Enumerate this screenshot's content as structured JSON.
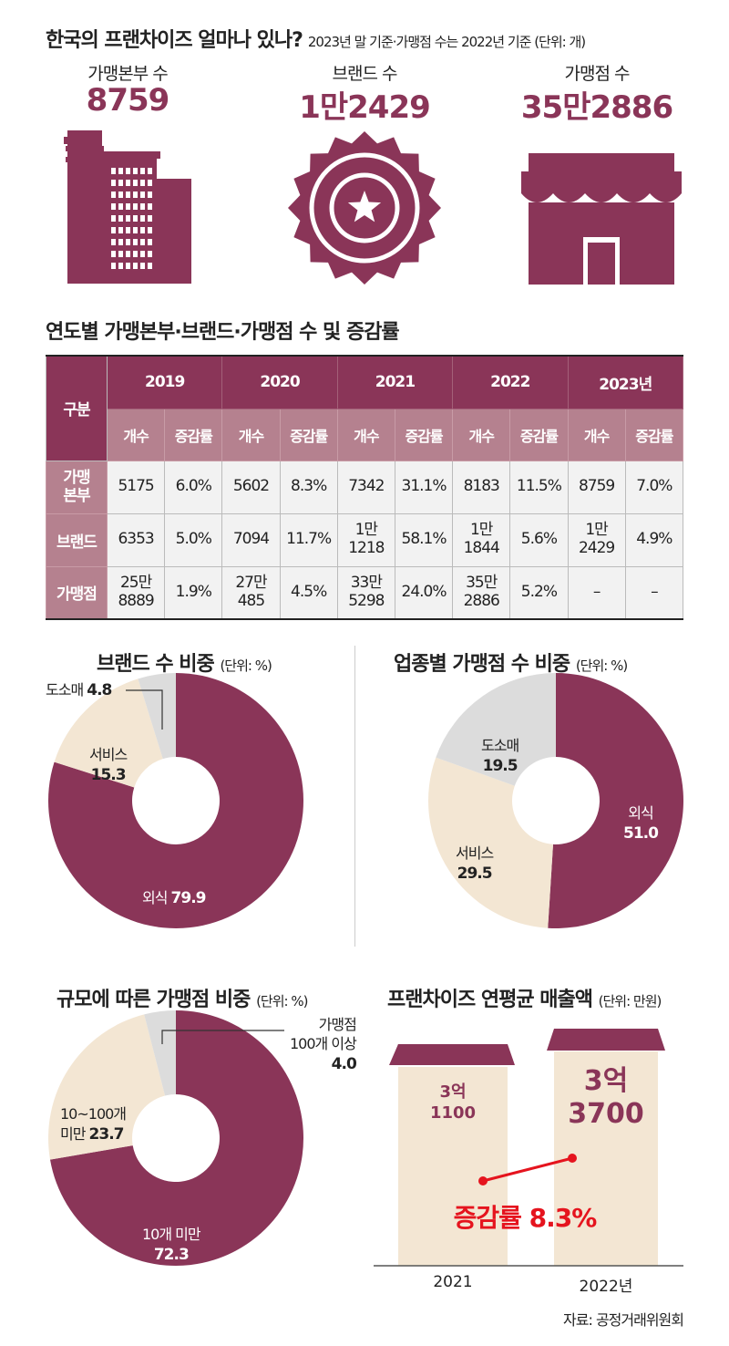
{
  "header": {
    "title": "한국의 프랜차이즈 얼마나 있나?",
    "subtitle": "2023년 말 기준·가맹점 수는 2022년 기준 (단위: 개)"
  },
  "stats": [
    {
      "label": "가맹본부 수",
      "value": "8759",
      "icon": "office-building-icon"
    },
    {
      "label": "브랜드 수",
      "value": "1만2429",
      "icon": "badge-star-icon"
    },
    {
      "label": "가맹점 수",
      "value": "35만2886",
      "icon": "storefront-icon"
    }
  ],
  "table": {
    "title": "연도별 가맹본부·브랜드·가맹점 수 및 증감률",
    "corner": "구분",
    "years": [
      "2019",
      "2020",
      "2021",
      "2022",
      "2023년"
    ],
    "sub": [
      "개수",
      "증감률"
    ],
    "rows": [
      {
        "label": "가맹 본부",
        "cells": [
          "5175",
          "6.0%",
          "5602",
          "8.3%",
          "7342",
          "31.1%",
          "8183",
          "11.5%",
          "8759",
          "7.0%"
        ]
      },
      {
        "label": "브랜드",
        "cells": [
          "6353",
          "5.0%",
          "7094",
          "11.7%",
          "1만 1218",
          "58.1%",
          "1만 1844",
          "5.6%",
          "1만 2429",
          "4.9%"
        ]
      },
      {
        "label": "가맹점",
        "cells": [
          "25만 8889",
          "1.9%",
          "27만 485",
          "4.5%",
          "33만 5298",
          "24.0%",
          "35만 2886",
          "5.2%",
          "–",
          "–"
        ]
      }
    ]
  },
  "colors": {
    "primary": "#8a3558",
    "secondary": "#b5818f",
    "cream": "#f3e6d3",
    "gray": "#dcdcdc",
    "red": "#e5141e"
  },
  "chart_data": [
    {
      "type": "pie",
      "title": "브랜드 수 비중",
      "unit": "(단위: %)",
      "categories": [
        "외식",
        "서비스",
        "도소매"
      ],
      "values": [
        79.9,
        15.3,
        4.8
      ]
    },
    {
      "type": "pie",
      "title": "업종별 가맹점 수 비중",
      "unit": "(단위: %)",
      "categories": [
        "외식",
        "서비스",
        "도소매"
      ],
      "values": [
        51.0,
        29.5,
        19.5
      ]
    },
    {
      "type": "pie",
      "title": "규모에 따른 가맹점 비중",
      "unit": "(단위: %)",
      "categories": [
        "10개 미만",
        "10~100개 미만",
        "가맹점 100개 이상"
      ],
      "values": [
        72.3,
        23.7,
        4.0
      ]
    },
    {
      "type": "bar",
      "title": "프랜차이즈 연평균 매출액",
      "unit": "(단위: 만원)",
      "categories": [
        "2021",
        "2022년"
      ],
      "values": [
        31100,
        33700
      ],
      "value_labels": [
        "3억 1100",
        "3억 3700"
      ],
      "annotation": "증감률 8.3%"
    }
  ],
  "labels": {
    "c1": {
      "a": "외식",
      "av": "79.9",
      "b": "서비스",
      "bv": "15.3",
      "c": "도소매",
      "cv": "4.8"
    },
    "c2": {
      "a": "외식",
      "av": "51.0",
      "b": "서비스",
      "bv": "29.5",
      "c": "도소매",
      "cv": "19.5"
    },
    "c3": {
      "a": "10개 미만",
      "av": "72.3",
      "b1": "10~100개",
      "b2": "미만",
      "bv": "23.7",
      "c1": "가맹점",
      "c2": "100개 이상",
      "cv": "4.0"
    },
    "bar": {
      "v1a": "3억",
      "v1b": "1100",
      "v2a": "3억",
      "v2b": "3700"
    }
  },
  "source": "자료: 공정거래위원회"
}
